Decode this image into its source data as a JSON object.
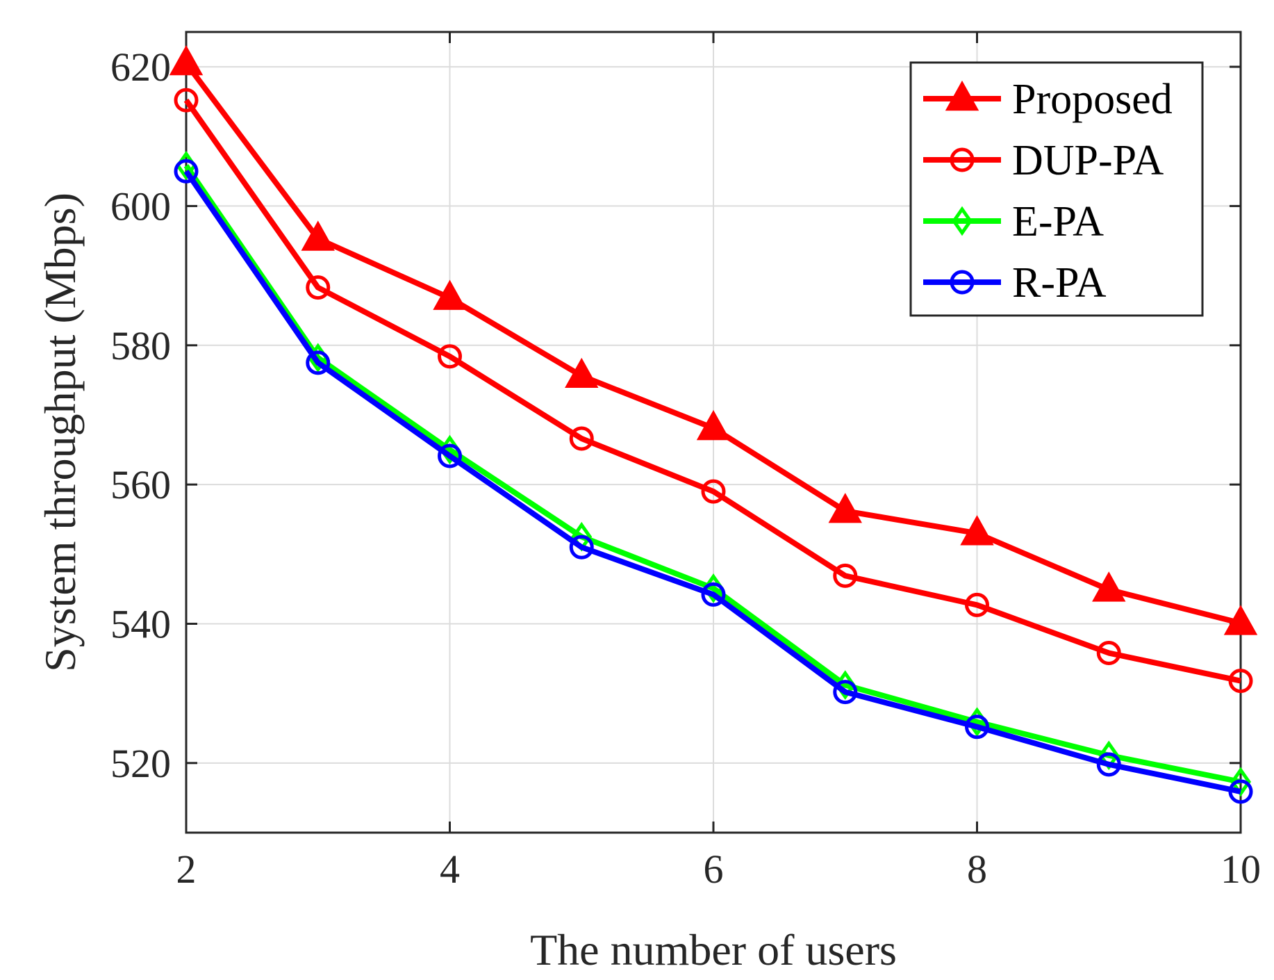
{
  "chart_data": {
    "type": "line",
    "title": "",
    "xlabel": "The number of users",
    "ylabel": "System throughput (Mbps)",
    "x": [
      2,
      3,
      4,
      5,
      6,
      7,
      8,
      9,
      10
    ],
    "xlim": [
      2,
      10
    ],
    "ylim": [
      510,
      625
    ],
    "xticks": [
      2,
      4,
      6,
      8,
      10
    ],
    "yticks": [
      520,
      540,
      560,
      580,
      600,
      620
    ],
    "grid": true,
    "legend_position": "top-right",
    "series": [
      {
        "name": "Proposed",
        "color": "#ff0000",
        "marker": "triangle",
        "values": [
          620.5,
          595.3,
          586.8,
          575.6,
          568.1,
          556.2,
          553.0,
          544.9,
          540.1
        ]
      },
      {
        "name": "DUP-PA",
        "color": "#ff0000",
        "marker": "circle",
        "values": [
          615.2,
          588.3,
          578.4,
          566.6,
          559.0,
          546.9,
          542.7,
          535.8,
          531.8
        ]
      },
      {
        "name": "E-PA",
        "color": "#00ff00",
        "marker": "diamond",
        "values": [
          605.8,
          578.2,
          565.0,
          552.5,
          545.1,
          531.2,
          525.9,
          521.1,
          517.3
        ]
      },
      {
        "name": "R-PA",
        "color": "#0000ff",
        "marker": "circle",
        "values": [
          605.0,
          577.5,
          564.1,
          551.0,
          544.2,
          530.2,
          525.2,
          519.8,
          515.9
        ]
      }
    ]
  }
}
